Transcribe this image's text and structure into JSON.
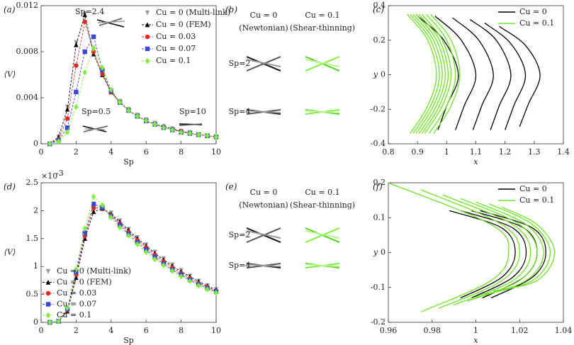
{
  "chart_data": [
    {
      "type": "line",
      "panel_label": "(a)",
      "xlabel": "Sp",
      "ylabel": "⟨V⟩",
      "xlim": [
        0,
        10
      ],
      "xticks": [
        0,
        2,
        4,
        6,
        8,
        10
      ],
      "ylim": [
        0,
        0.012
      ],
      "yticks": [
        0,
        0.004,
        0.008,
        0.012
      ],
      "annotations": [
        "Sp=2.4",
        "Sp=0.5",
        "Sp=10"
      ],
      "x": [
        0.5,
        1,
        1.5,
        2,
        2.5,
        3,
        3.5,
        4,
        4.5,
        5,
        5.5,
        6,
        6.5,
        7,
        7.5,
        8,
        8.5,
        9,
        9.5,
        10
      ],
      "series": [
        {
          "name": "Cu = 0 (Multi-link)",
          "color": "#9a9a9a",
          "marker": "triangle-down",
          "linestyle": "none",
          "values": [
            0,
            0.0006,
            0.0032,
            0.0088,
            0.0113,
            0.0079,
            0.0061,
            0.0046,
            0.0037,
            0.003,
            0.0025,
            0.0021,
            0.0018,
            0.0015,
            0.0013,
            0.0011,
            0.001,
            0.0008,
            0.0007,
            0.0006
          ]
        },
        {
          "name": "Cu = 0 (FEM)",
          "color": "#000000",
          "marker": "triangle",
          "linestyle": "dashed",
          "values": [
            0,
            0.0006,
            0.003,
            0.0086,
            0.0112,
            0.0078,
            0.006,
            0.0045,
            0.0036,
            0.0029,
            0.0024,
            0.002,
            0.0017,
            0.0015,
            0.0013,
            0.0011,
            0.0009,
            0.0008,
            0.0007,
            0.0006
          ]
        },
        {
          "name": "Cu = 0.03",
          "color": "#e8261e",
          "marker": "circle",
          "linestyle": "dashed",
          "values": [
            0,
            0.0004,
            0.0022,
            0.0068,
            0.0106,
            0.008,
            0.0061,
            0.0045,
            0.0036,
            0.0029,
            0.0024,
            0.002,
            0.0017,
            0.0014,
            0.0012,
            0.0011,
            0.0009,
            0.0008,
            0.0007,
            0.0006
          ]
        },
        {
          "name": "Cu = 0.07",
          "color": "#3a46d6",
          "marker": "square",
          "linestyle": "dashed",
          "values": [
            0,
            0.0003,
            0.0014,
            0.0045,
            0.008,
            0.0093,
            0.0064,
            0.0046,
            0.0036,
            0.0029,
            0.0024,
            0.002,
            0.0017,
            0.0014,
            0.0012,
            0.001,
            0.0009,
            0.0008,
            0.0007,
            0.0006
          ]
        },
        {
          "name": "Cu = 0.1",
          "color": "#7df03a",
          "marker": "diamond",
          "linestyle": "dashed",
          "values": [
            0,
            0.0002,
            0.001,
            0.0032,
            0.0062,
            0.0083,
            0.0066,
            0.0047,
            0.0036,
            0.0029,
            0.0024,
            0.002,
            0.0017,
            0.0014,
            0.0012,
            0.001,
            0.0009,
            0.0008,
            0.0007,
            0.0006
          ]
        }
      ]
    },
    {
      "type": "curves",
      "panel_label": "(c)",
      "xlabel": "x",
      "ylabel": "y",
      "xlim": [
        0.8,
        1.4
      ],
      "xticks": [
        0.8,
        0.9,
        1,
        1.1,
        1.2,
        1.3,
        1.4
      ],
      "ylim": [
        -0.4,
        0.4
      ],
      "yticks": [
        -0.4,
        -0.2,
        0,
        0.2,
        0.4
      ],
      "series": [
        {
          "name": "Cu = 0",
          "color": "#000000",
          "curves": [
            {
              "x": [
                0.9,
                0.99,
                1.04,
                1.0,
                0.97
              ],
              "y": [
                0.34,
                0.2,
                0,
                -0.18,
                -0.32
              ]
            },
            {
              "x": [
                0.96,
                1.05,
                1.1,
                1.06,
                1.03
              ],
              "y": [
                0.34,
                0.2,
                0,
                -0.18,
                -0.32
              ]
            },
            {
              "x": [
                1.02,
                1.11,
                1.16,
                1.12,
                1.09
              ],
              "y": [
                0.33,
                0.2,
                0,
                -0.18,
                -0.32
              ]
            },
            {
              "x": [
                1.08,
                1.17,
                1.22,
                1.18,
                1.15
              ],
              "y": [
                0.32,
                0.2,
                0,
                -0.18,
                -0.32
              ]
            },
            {
              "x": [
                1.13,
                1.22,
                1.27,
                1.23,
                1.2
              ],
              "y": [
                0.3,
                0.18,
                0,
                -0.18,
                -0.32
              ]
            },
            {
              "x": [
                1.18,
                1.27,
                1.32,
                1.28,
                1.25
              ],
              "y": [
                0.28,
                0.17,
                0,
                -0.17,
                -0.3
              ]
            }
          ]
        },
        {
          "name": "Cu = 0.1",
          "color": "#6fe02a",
          "curves": [
            {
              "x": [
                0.865,
                0.935,
                0.965,
                0.935,
                0.875
              ],
              "y": [
                0.35,
                0.2,
                0,
                -0.18,
                -0.34
              ]
            },
            {
              "x": [
                0.875,
                0.945,
                0.975,
                0.945,
                0.885
              ],
              "y": [
                0.35,
                0.2,
                0,
                -0.18,
                -0.34
              ]
            },
            {
              "x": [
                0.885,
                0.955,
                0.985,
                0.955,
                0.895
              ],
              "y": [
                0.35,
                0.2,
                0,
                -0.18,
                -0.34
              ]
            },
            {
              "x": [
                0.895,
                0.965,
                0.995,
                0.965,
                0.905
              ],
              "y": [
                0.35,
                0.2,
                0,
                -0.18,
                -0.34
              ]
            },
            {
              "x": [
                0.905,
                0.975,
                1.005,
                0.975,
                0.915
              ],
              "y": [
                0.35,
                0.2,
                0,
                -0.18,
                -0.34
              ]
            },
            {
              "x": [
                0.915,
                0.985,
                1.015,
                0.985,
                0.925
              ],
              "y": [
                0.35,
                0.2,
                0,
                -0.18,
                -0.34
              ]
            },
            {
              "x": [
                0.93,
                1.0,
                1.03,
                1.0,
                0.94
              ],
              "y": [
                0.35,
                0.2,
                0,
                -0.18,
                -0.34
              ]
            },
            {
              "x": [
                0.945,
                1.015,
                1.045,
                1.015,
                0.955
              ],
              "y": [
                0.35,
                0.2,
                0,
                -0.18,
                -0.34
              ]
            }
          ]
        }
      ]
    },
    {
      "type": "line",
      "panel_label": "(d)",
      "xlabel": "Sp",
      "ylabel": "⟨V⟩",
      "scale_label": "×10",
      "scale_exponent": "-3",
      "xlim": [
        0,
        10
      ],
      "xticks": [
        0,
        2,
        4,
        6,
        8,
        10
      ],
      "ylim": [
        0,
        2.5
      ],
      "yticks": [
        0,
        0.5,
        1,
        1.5,
        2,
        2.5
      ],
      "x": [
        0.5,
        1,
        1.5,
        2,
        2.5,
        3,
        3.5,
        4,
        4.5,
        5,
        5.5,
        6,
        6.5,
        7,
        7.5,
        8,
        8.5,
        9,
        9.5,
        10
      ],
      "series": [
        {
          "name": "Cu = 0 (Multi-link)",
          "color": "#9a9a9a",
          "marker": "triangle-down",
          "linestyle": "none",
          "values": [
            0,
            0.02,
            0.2,
            0.8,
            1.5,
            2.0,
            2.06,
            1.96,
            1.82,
            1.67,
            1.52,
            1.39,
            1.26,
            1.14,
            1.03,
            0.93,
            0.83,
            0.74,
            0.66,
            0.59
          ]
        },
        {
          "name": "Cu = 0 (FEM)",
          "color": "#000000",
          "marker": "triangle",
          "linestyle": "dashed",
          "values": [
            0,
            0.02,
            0.2,
            0.8,
            1.5,
            1.98,
            2.04,
            1.94,
            1.8,
            1.65,
            1.5,
            1.37,
            1.24,
            1.12,
            1.01,
            0.91,
            0.82,
            0.73,
            0.65,
            0.58
          ]
        },
        {
          "name": "Cu = 0.03",
          "color": "#e8261e",
          "marker": "circle",
          "linestyle": "dashed",
          "values": [
            0,
            0.02,
            0.22,
            0.85,
            1.55,
            2.05,
            2.05,
            1.92,
            1.77,
            1.62,
            1.47,
            1.34,
            1.21,
            1.09,
            0.98,
            0.88,
            0.79,
            0.7,
            0.63,
            0.56
          ]
        },
        {
          "name": "Cu = 0.07",
          "color": "#3a46d6",
          "marker": "square",
          "linestyle": "dashed",
          "values": [
            0,
            0.02,
            0.24,
            0.9,
            1.6,
            2.12,
            2.06,
            1.9,
            1.74,
            1.58,
            1.43,
            1.3,
            1.17,
            1.05,
            0.94,
            0.85,
            0.76,
            0.68,
            0.61,
            0.55
          ]
        },
        {
          "name": "Cu = 0.1",
          "color": "#7df03a",
          "marker": "diamond",
          "linestyle": "dashed",
          "values": [
            0,
            0.02,
            0.26,
            0.95,
            1.68,
            2.25,
            2.1,
            1.88,
            1.7,
            1.55,
            1.4,
            1.26,
            1.13,
            1.02,
            0.92,
            0.82,
            0.74,
            0.66,
            0.59,
            0.53
          ]
        }
      ]
    },
    {
      "type": "curves",
      "panel_label": "(f)",
      "xlabel": "x",
      "ylabel": "y",
      "xlim": [
        0.96,
        1.04
      ],
      "xticks": [
        0.96,
        0.98,
        1,
        1.02,
        1.04
      ],
      "ylim": [
        -0.2,
        0.2
      ],
      "yticks": [
        -0.2,
        -0.1,
        0,
        0.1,
        0.2
      ],
      "series": [
        {
          "name": "Cu = 0",
          "color": "#000000",
          "curves": [
            {
              "x": [
                0.988,
                1.012,
                1.018,
                1.012,
                0.993
              ],
              "y": [
                0.12,
                0.07,
                0,
                -0.07,
                -0.13
              ]
            },
            {
              "x": [
                0.993,
                1.017,
                1.023,
                1.017,
                0.998
              ],
              "y": [
                0.12,
                0.07,
                0,
                -0.07,
                -0.13
              ]
            },
            {
              "x": [
                0.998,
                1.022,
                1.028,
                1.022,
                1.003
              ],
              "y": [
                0.12,
                0.07,
                0,
                -0.07,
                -0.13
              ]
            },
            {
              "x": [
                1.002,
                1.026,
                1.032,
                1.026,
                1.007
              ],
              "y": [
                0.12,
                0.07,
                0,
                -0.07,
                -0.13
              ]
            }
          ]
        },
        {
          "name": "Cu = 0.1",
          "color": "#6fe02a",
          "curves": [
            {
              "x": [
                0.96,
                1.007,
                1.015,
                1.007,
                0.975
              ],
              "y": [
                0.2,
                0.08,
                0,
                -0.08,
                -0.17
              ]
            },
            {
              "x": [
                0.975,
                1.012,
                1.02,
                1.012,
                0.983
              ],
              "y": [
                0.18,
                0.08,
                0,
                -0.08,
                -0.16
              ]
            },
            {
              "x": [
                0.985,
                1.017,
                1.025,
                1.017,
                0.99
              ],
              "y": [
                0.165,
                0.08,
                0,
                -0.08,
                -0.15
              ]
            },
            {
              "x": [
                0.993,
                1.02,
                1.028,
                1.02,
                0.996
              ],
              "y": [
                0.155,
                0.08,
                0,
                -0.08,
                -0.14
              ]
            },
            {
              "x": [
                1.0,
                1.023,
                1.031,
                1.023,
                1.0
              ],
              "y": [
                0.145,
                0.08,
                0,
                -0.08,
                -0.13
              ]
            },
            {
              "x": [
                1.006,
                1.026,
                1.034,
                1.026,
                1.004
              ],
              "y": [
                0.14,
                0.08,
                0,
                -0.08,
                -0.12
              ]
            },
            {
              "x": [
                1.012,
                1.028,
                1.036,
                1.028,
                1.008
              ],
              "y": [
                0.13,
                0.08,
                0,
                -0.08,
                -0.11
              ]
            }
          ]
        }
      ]
    }
  ],
  "diagrams": [
    {
      "panel_label": "(b)",
      "columns": [
        {
          "title": "Cu = 0",
          "subtitle": "(Newtonian)"
        },
        {
          "title": "Cu = 0.1",
          "subtitle": "(Shear-thinning)"
        }
      ],
      "rows": [
        "Sp=2",
        "Sp=4"
      ]
    },
    {
      "panel_label": "(e)",
      "columns": [
        {
          "title": "Cu = 0",
          "subtitle": "(Newtonian)"
        },
        {
          "title": "Cu = 0.1",
          "subtitle": "(Shear-thinning)"
        }
      ],
      "rows": [
        "Sp=2",
        "Sp=4"
      ]
    }
  ]
}
